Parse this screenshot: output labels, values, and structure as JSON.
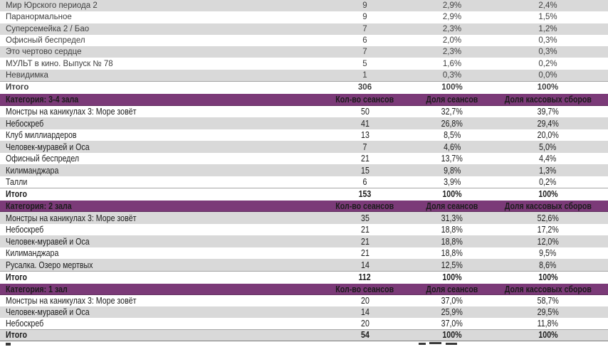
{
  "colors": {
    "header_bg": "#7B3A78",
    "row_shade": "#D9D9D9",
    "total_border": "#A6A6A6",
    "bottom_divider": "#7A7A7A"
  },
  "table": {
    "columns": {
      "sessions": "Кол-во сеансов",
      "share_sessions": "Доля сеансов",
      "share_box": "Доля кассовых сборов"
    },
    "sections": [
      {
        "category": null,
        "style": "regular",
        "rows": [
          {
            "title": "Мир Юрского периода 2",
            "sessions": "9",
            "share_sessions": "2,9%",
            "share_box": "2,4%",
            "shaded": true,
            "total": false
          },
          {
            "title": "Паранормальное",
            "sessions": "9",
            "share_sessions": "2,9%",
            "share_box": "1,5%",
            "shaded": false,
            "total": false
          },
          {
            "title": "Суперсемейка 2 / Бао",
            "sessions": "7",
            "share_sessions": "2,3%",
            "share_box": "1,2%",
            "shaded": true,
            "total": false
          },
          {
            "title": "Офисный беспредел",
            "sessions": "6",
            "share_sessions": "2,0%",
            "share_box": "0,3%",
            "shaded": false,
            "total": false
          },
          {
            "title": "Это чертово сердце",
            "sessions": "7",
            "share_sessions": "2,3%",
            "share_box": "0,3%",
            "shaded": true,
            "total": false
          },
          {
            "title": "МУЛЬТ в кино. Выпуск № 78",
            "sessions": "5",
            "share_sessions": "1,6%",
            "share_box": "0,2%",
            "shaded": false,
            "total": false
          },
          {
            "title": "Невидимка",
            "sessions": "1",
            "share_sessions": "0,3%",
            "share_box": "0,0%",
            "shaded": true,
            "total": false
          },
          {
            "title": "Итого",
            "sessions": "306",
            "share_sessions": "100%",
            "share_box": "100%",
            "shaded": false,
            "total": true
          }
        ]
      },
      {
        "category": "Категория: 3-4 зала",
        "style": "condensed",
        "rows": [
          {
            "title": "Монстры на каникулах 3: Море зовёт",
            "sessions": "50",
            "share_sessions": "32,7%",
            "share_box": "39,7%",
            "shaded": false,
            "total": false
          },
          {
            "title": "Небоскреб",
            "sessions": "41",
            "share_sessions": "26,8%",
            "share_box": "29,4%",
            "shaded": true,
            "total": false
          },
          {
            "title": "Клуб миллиардеров",
            "sessions": "13",
            "share_sessions": "8,5%",
            "share_box": "20,0%",
            "shaded": false,
            "total": false
          },
          {
            "title": "Человек-муравей и Оса",
            "sessions": "7",
            "share_sessions": "4,6%",
            "share_box": "5,0%",
            "shaded": true,
            "total": false
          },
          {
            "title": "Офисный беспредел",
            "sessions": "21",
            "share_sessions": "13,7%",
            "share_box": "4,4%",
            "shaded": false,
            "total": false
          },
          {
            "title": "Килиманджара",
            "sessions": "15",
            "share_sessions": "9,8%",
            "share_box": "1,3%",
            "shaded": true,
            "total": false
          },
          {
            "title": "Талли",
            "sessions": "6",
            "share_sessions": "3,9%",
            "share_box": "0,2%",
            "shaded": false,
            "total": false
          },
          {
            "title": "Итого",
            "sessions": "153",
            "share_sessions": "100%",
            "share_box": "100%",
            "shaded": false,
            "total": true
          }
        ]
      },
      {
        "category": "Категория: 2 зала",
        "style": "condensed",
        "rows": [
          {
            "title": "Монстры на каникулах 3: Море зовёт",
            "sessions": "35",
            "share_sessions": "31,3%",
            "share_box": "52,6%",
            "shaded": true,
            "total": false
          },
          {
            "title": "Небоскреб",
            "sessions": "21",
            "share_sessions": "18,8%",
            "share_box": "17,2%",
            "shaded": false,
            "total": false
          },
          {
            "title": "Человек-муравей и Оса",
            "sessions": "21",
            "share_sessions": "18,8%",
            "share_box": "12,0%",
            "shaded": true,
            "total": false
          },
          {
            "title": "Килиманджара",
            "sessions": "21",
            "share_sessions": "18,8%",
            "share_box": "9,5%",
            "shaded": false,
            "total": false
          },
          {
            "title": "Русалка. Озеро мертвых",
            "sessions": "14",
            "share_sessions": "12,5%",
            "share_box": "8,6%",
            "shaded": true,
            "total": false
          },
          {
            "title": "Итого",
            "sessions": "112",
            "share_sessions": "100%",
            "share_box": "100%",
            "shaded": false,
            "total": true
          }
        ]
      },
      {
        "category": "Категория: 1 зал",
        "style": "condensed",
        "rows": [
          {
            "title": "Монстры на каникулах 3: Море зовёт",
            "sessions": "20",
            "share_sessions": "37,0%",
            "share_box": "58,7%",
            "shaded": false,
            "total": false
          },
          {
            "title": "Человек-муравей и Оса",
            "sessions": "14",
            "share_sessions": "25,9%",
            "share_box": "29,5%",
            "shaded": true,
            "total": false
          },
          {
            "title": "Небоскреб",
            "sessions": "20",
            "share_sessions": "37,0%",
            "share_box": "11,8%",
            "shaded": false,
            "total": false
          },
          {
            "title": "Итого",
            "sessions": "54",
            "share_sessions": "100%",
            "share_box": "100%",
            "shaded": true,
            "total": true
          }
        ]
      }
    ]
  }
}
